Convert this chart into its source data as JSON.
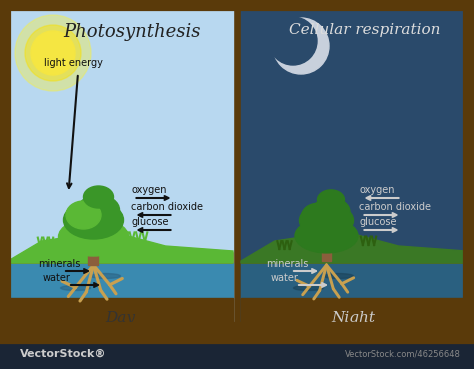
{
  "title_day": "Photosynthesis",
  "title_night": "Cellular respiration",
  "label_day": "Day",
  "label_night": "Night",
  "label_light_energy": "light energy",
  "sky_day_color": "#b8d8f0",
  "sky_night_color": "#2a4a6b",
  "ground_color": "#8B6914",
  "grass_color": "#4a8c1c",
  "water_color": "#4a9fc8",
  "water_dark_color": "#2a7090",
  "sun_color": "#f5e642",
  "sun_glow_color": "#f8f040",
  "moon_color": "#d0d8e0",
  "tree_green_dark": "#2d7a1e",
  "tree_green_mid": "#3a9628",
  "tree_green_light": "#5ab835",
  "tree_trunk_color": "#8B5e3c",
  "root_color": "#c8a050",
  "arrow_color": "#111111",
  "text_color_day": "#111111",
  "text_color_night": "#dddddd",
  "border_color": "#5a3a0a",
  "bottom_bar_color": "#1a2535",
  "vectorstock_color": "#cccccc",
  "oxygen_day": "oxygen",
  "carbon_dioxide_day": "carbon dioxide",
  "glucose_day": "glucose",
  "minerals_day": "minerals",
  "water_day": "water",
  "oxygen_night": "oxygen",
  "carbon_dioxide_night": "carbon dioxide",
  "glucose_night": "glucose",
  "minerals_night": "minerals",
  "water_night": "water"
}
